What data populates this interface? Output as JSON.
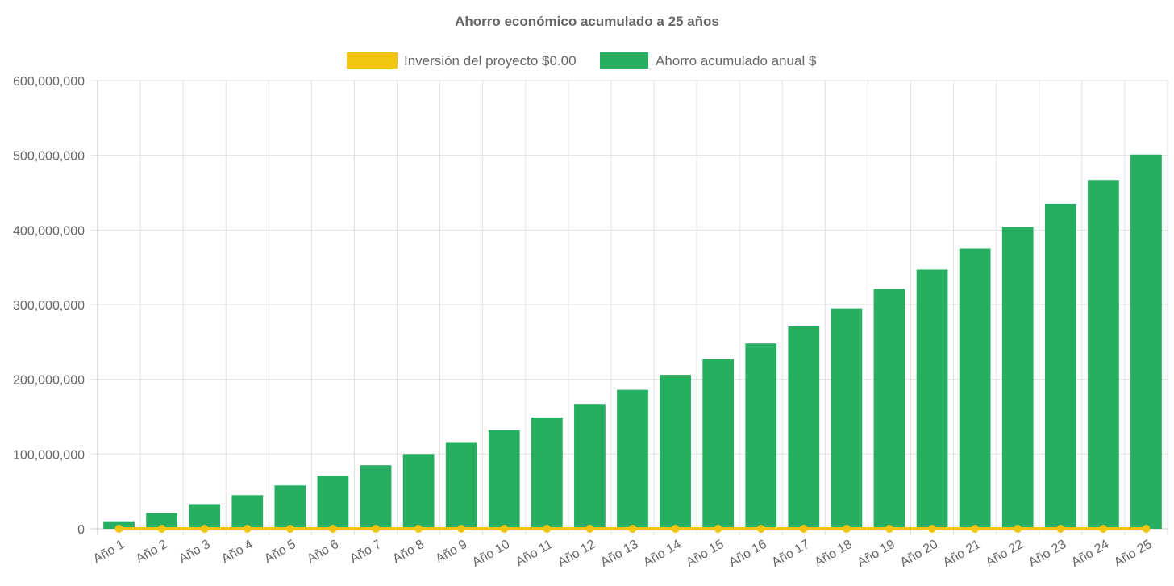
{
  "chart_data": {
    "type": "bar",
    "title": "Ahorro económico acumulado a 25 años",
    "xlabel": "",
    "ylabel": "",
    "ylim": [
      0,
      600000000
    ],
    "y_ticks": [
      0,
      100000000,
      200000000,
      300000000,
      400000000,
      500000000,
      600000000
    ],
    "y_tick_labels": [
      "0",
      "100,000,000",
      "200,000,000",
      "300,000,000",
      "400,000,000",
      "500,000,000",
      "600,000,000"
    ],
    "grid": true,
    "legend_position": "top-center",
    "categories": [
      "Año 1",
      "Año 2",
      "Año 3",
      "Año 4",
      "Año 5",
      "Año 6",
      "Año 7",
      "Año 8",
      "Año 9",
      "Año 10",
      "Año 11",
      "Año 12",
      "Año 13",
      "Año 14",
      "Año 15",
      "Año 16",
      "Año 17",
      "Año 18",
      "Año 19",
      "Año 20",
      "Año 21",
      "Año 22",
      "Año 23",
      "Año 24",
      "Año 25"
    ],
    "series": [
      {
        "name": "Inversión del proyecto $0.00",
        "type": "line",
        "color": "#f1c40f",
        "values": [
          0,
          0,
          0,
          0,
          0,
          0,
          0,
          0,
          0,
          0,
          0,
          0,
          0,
          0,
          0,
          0,
          0,
          0,
          0,
          0,
          0,
          0,
          0,
          0,
          0
        ]
      },
      {
        "name": "Ahorro acumulado anual $",
        "type": "bar",
        "color": "#27ae60",
        "values": [
          10000000,
          21000000,
          33000000,
          45000000,
          58000000,
          71000000,
          85000000,
          100000000,
          116000000,
          132000000,
          149000000,
          167000000,
          186000000,
          206000000,
          227000000,
          248000000,
          271000000,
          295000000,
          321000000,
          347000000,
          375000000,
          404000000,
          435000000,
          467000000,
          501000000
        ]
      }
    ]
  }
}
